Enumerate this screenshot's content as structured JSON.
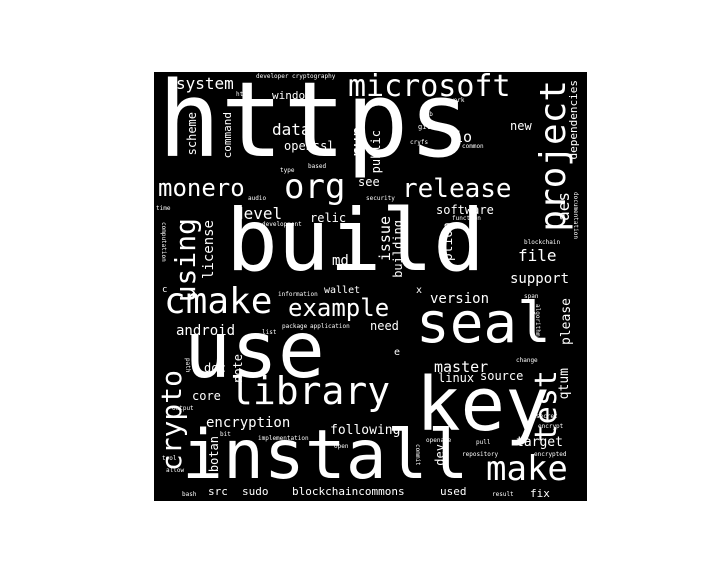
{
  "canvas": {
    "background": "#ffffff",
    "cloud_background": "#000000",
    "text_color": "#ffffff"
  },
  "words": {
    "https": "https",
    "build": "build",
    "use": "use",
    "install": "install",
    "key": "key",
    "seal": "seal",
    "cmake": "cmake",
    "microsoft": "microsoft",
    "org": "org",
    "library": "library",
    "project": "project",
    "release": "release",
    "make": "make",
    "monero": "monero",
    "example": "example",
    "test": "test",
    "crypto": "crypto",
    "using": "using",
    "system": "system",
    "data": "data",
    "run": "run",
    "io": "io",
    "openssl": "openssl",
    "window": "window",
    "command": "command",
    "scheme": "scheme",
    "public": "public",
    "see": "see",
    "aes": "aes",
    "new": "new",
    "dependencies": "dependencies",
    "devel": "devel",
    "relic": "relic",
    "issue": "issue",
    "building": "building",
    "md": "md",
    "license": "license",
    "software": "software",
    "option": "option",
    "file": "file",
    "support": "support",
    "version": "version",
    "wallet": "wallet",
    "android": "android",
    "need": "need",
    "please": "please",
    "master": "master",
    "qtum": "qtum",
    "doc": "doc",
    "note": "note",
    "linux": "linux",
    "source": "source",
    "core": "core",
    "encryption": "encryption",
    "following": "following",
    "target": "target",
    "botan": "botan",
    "dev": "dev",
    "src": "src",
    "sudo": "sudo",
    "blockchaincommons": "blockchaincommons",
    "used": "used",
    "fix": "fix",
    "developer": "developer",
    "cryptography": "cryptography",
    "html": "html",
    "work": "work",
    "lib": "lib",
    "git": "git",
    "cryfs": "cryfs",
    "common": "common",
    "type": "type",
    "based": "based",
    "security": "security",
    "development": "development",
    "function": "function",
    "blockchain": "blockchain",
    "computation": "computation",
    "documentation": "documentation",
    "information": "information",
    "package": "package",
    "application": "application",
    "list": "list",
    "span": "span",
    "algorithm": "algorithm",
    "change": "change",
    "secret": "secret",
    "encrypt": "encrypt",
    "encrypted": "encrypted",
    "repository": "repository",
    "pull": "pull",
    "commit": "commit",
    "openabe": "openabe",
    "implementation": "implementation",
    "open": "open",
    "bash": "bash",
    "result": "result",
    "allow": "allow",
    "output": "output",
    "path": "path",
    "tool": "tool",
    "bit": "bit",
    "time": "time",
    "audio": "audio",
    "x": "x",
    "e": "e",
    "c": "c"
  }
}
